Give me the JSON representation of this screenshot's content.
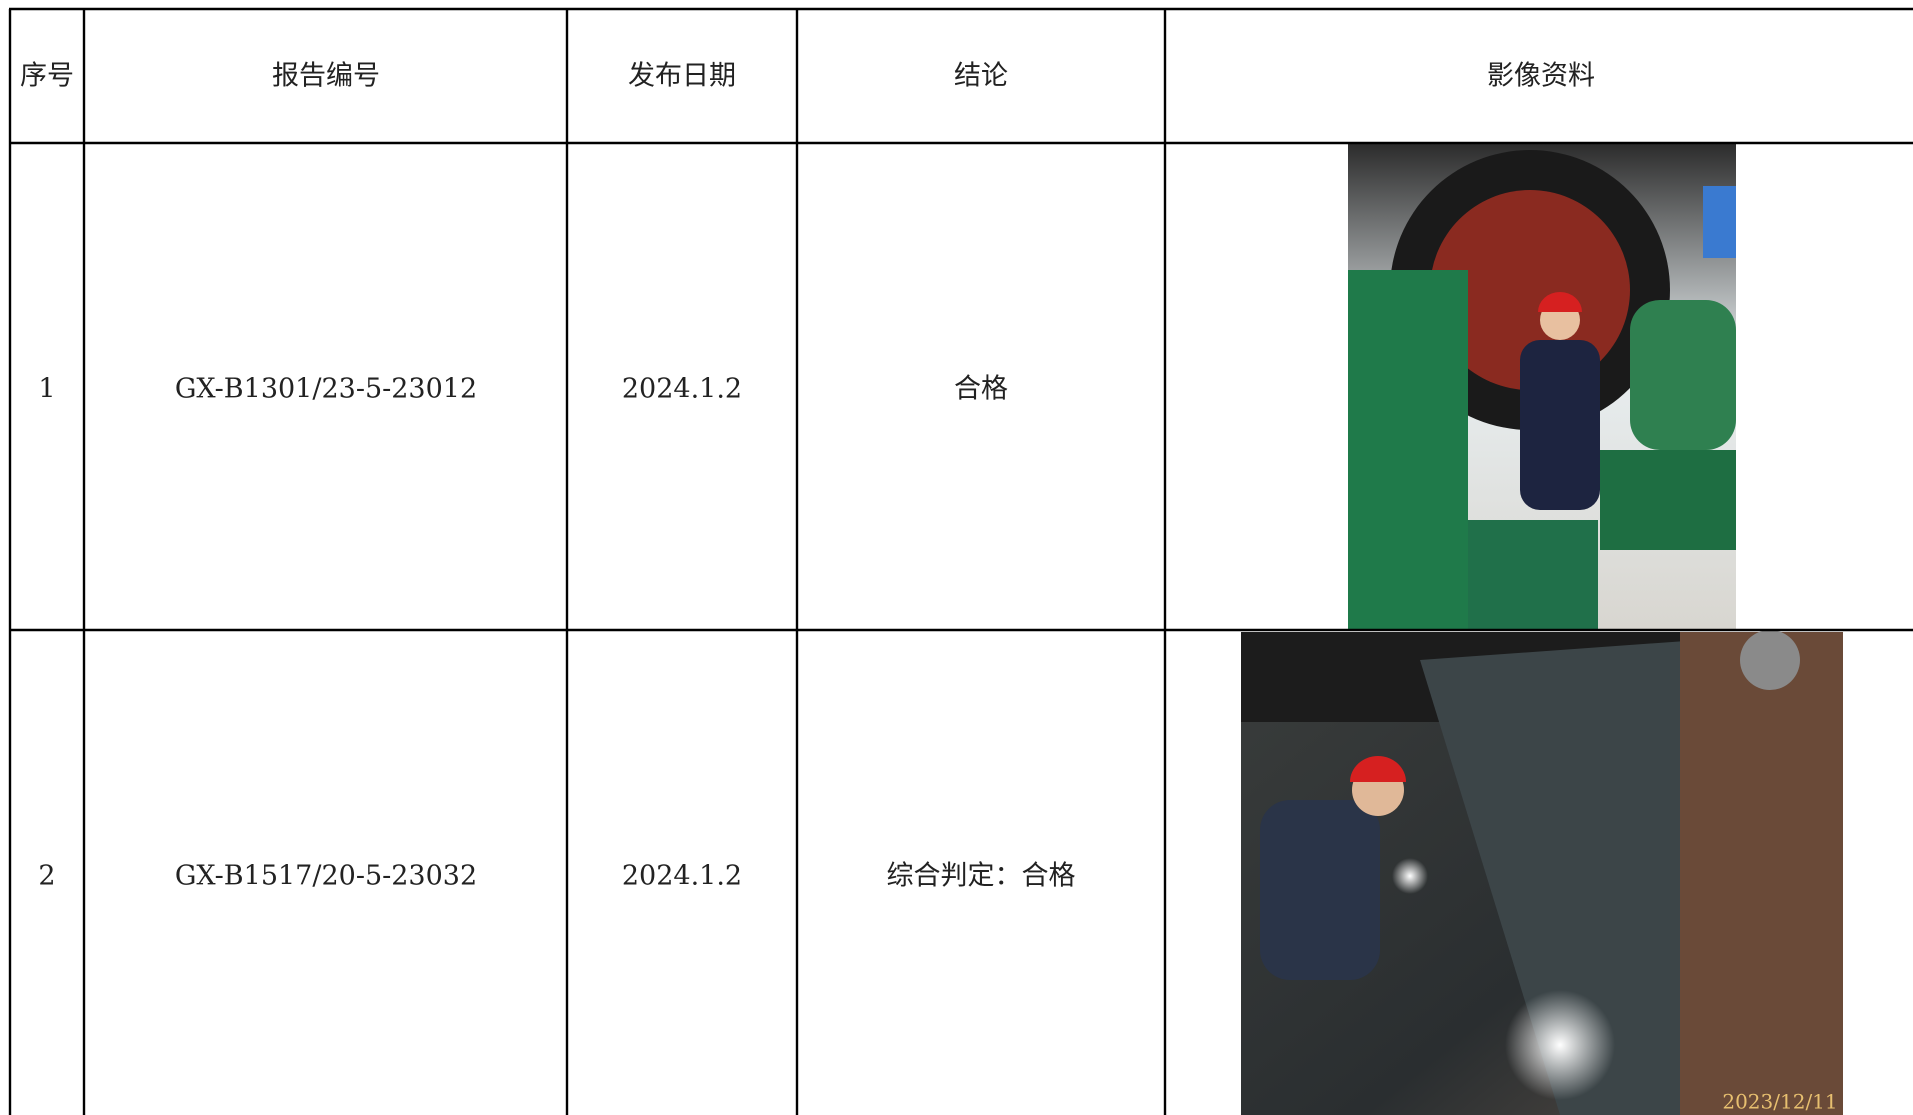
{
  "table": {
    "header": [
      "序号",
      "报告编号",
      "发布日期",
      "结论",
      "影像资料"
    ],
    "rows": [
      {
        "index": "1",
        "report_no": "GX-B1301/23-5-23012",
        "date": "2024.1.2",
        "conclusion": "合格"
      },
      {
        "index": "2",
        "report_no": "GX-B1517/20-5-23032",
        "date": "2024.1.2",
        "conclusion": "综合判定：合格",
        "photo_stamp": "2023/12/11"
      }
    ]
  }
}
